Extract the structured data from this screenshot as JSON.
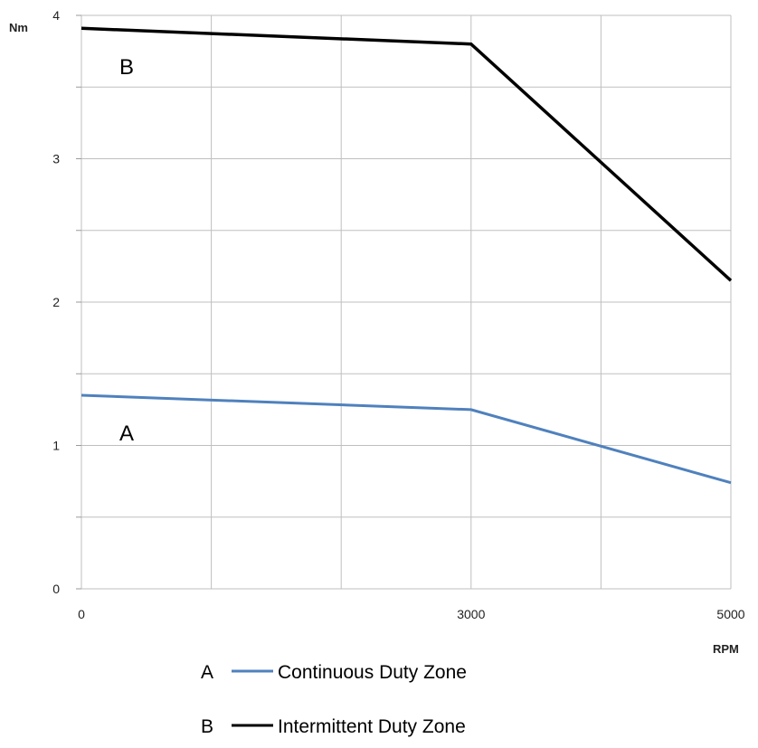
{
  "chart_data": {
    "type": "line",
    "title": "",
    "xlabel": "RPM",
    "ylabel": "Nm",
    "xlim": [
      0,
      5000
    ],
    "ylim": [
      0,
      4
    ],
    "x_ticks": [
      "0",
      "3000",
      "5000"
    ],
    "y_ticks": [
      "0",
      "1",
      "2",
      "3",
      "4"
    ],
    "grid": true,
    "legend_position": "bottom",
    "series": [
      {
        "name": "Continuous Duty Zone",
        "letter": "A",
        "color": "#4f81bd",
        "x": [
          0,
          3000,
          5000
        ],
        "y": [
          1.35,
          1.25,
          0.74
        ]
      },
      {
        "name": "Intermittent Duty Zone",
        "letter": "B",
        "color": "#000000",
        "x": [
          0,
          3000,
          5000
        ],
        "y": [
          3.91,
          3.8,
          2.15
        ]
      }
    ]
  }
}
